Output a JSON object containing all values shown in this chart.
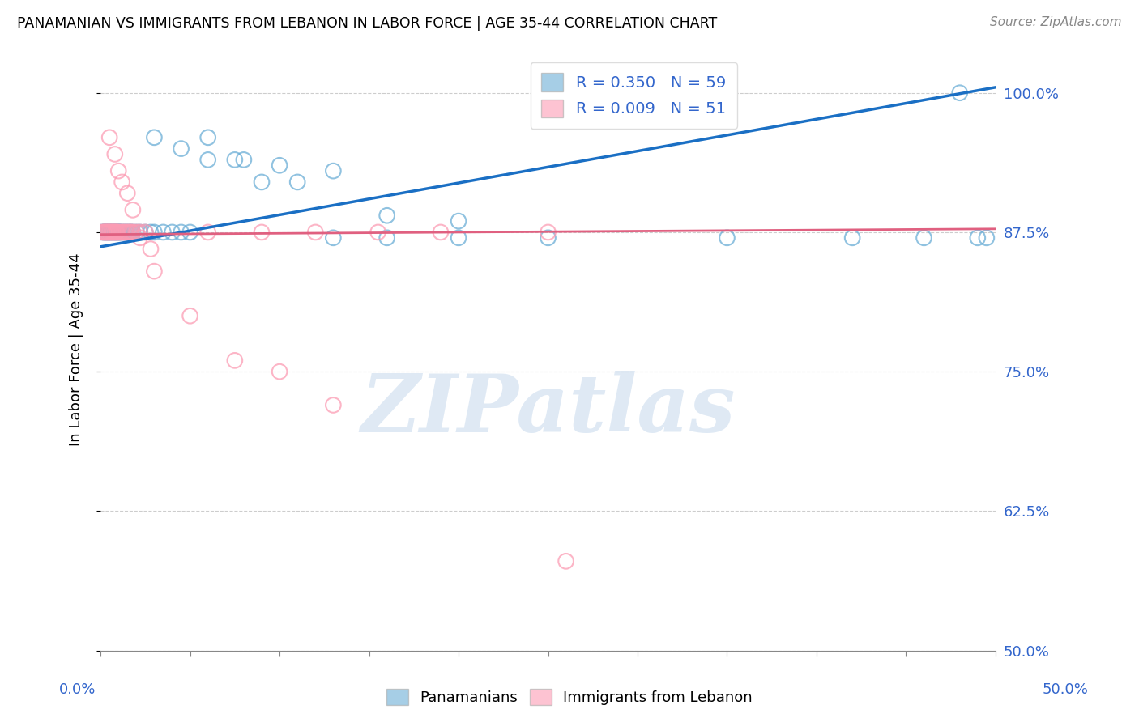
{
  "title": "PANAMANIAN VS IMMIGRANTS FROM LEBANON IN LABOR FORCE | AGE 35-44 CORRELATION CHART",
  "source": "Source: ZipAtlas.com",
  "ylabel": "In Labor Force | Age 35-44",
  "ytick_values": [
    0.5,
    0.625,
    0.75,
    0.875,
    1.0
  ],
  "ytick_labels": [
    "50.0%",
    "62.5%",
    "75.0%",
    "87.5%",
    "100.0%"
  ],
  "xmin": 0.0,
  "xmax": 0.5,
  "ymin": 0.5,
  "ymax": 1.04,
  "blue_color": "#6baed6",
  "pink_color": "#fc9cb4",
  "blue_line_color": "#1a6fc4",
  "pink_line_color": "#e06080",
  "watermark": "ZIPatlas",
  "blue_scatter_x": [
    0.001,
    0.002,
    0.002,
    0.003,
    0.003,
    0.004,
    0.004,
    0.005,
    0.005,
    0.006,
    0.006,
    0.007,
    0.007,
    0.008,
    0.008,
    0.009,
    0.009,
    0.01,
    0.01,
    0.011,
    0.011,
    0.012,
    0.013,
    0.014,
    0.015,
    0.016,
    0.017,
    0.018,
    0.02,
    0.022,
    0.025,
    0.028,
    0.03,
    0.035,
    0.04,
    0.045,
    0.05,
    0.06,
    0.075,
    0.09,
    0.11,
    0.13,
    0.16,
    0.2,
    0.25,
    0.03,
    0.045,
    0.06,
    0.08,
    0.1,
    0.13,
    0.16,
    0.2,
    0.35,
    0.42,
    0.46,
    0.48,
    0.49,
    0.495
  ],
  "blue_scatter_y": [
    0.875,
    0.875,
    0.875,
    0.875,
    0.875,
    0.875,
    0.875,
    0.875,
    0.875,
    0.875,
    0.875,
    0.875,
    0.875,
    0.875,
    0.875,
    0.875,
    0.875,
    0.875,
    0.875,
    0.875,
    0.875,
    0.875,
    0.875,
    0.875,
    0.875,
    0.875,
    0.875,
    0.875,
    0.875,
    0.875,
    0.875,
    0.875,
    0.875,
    0.875,
    0.875,
    0.875,
    0.875,
    0.96,
    0.94,
    0.92,
    0.92,
    0.87,
    0.87,
    0.87,
    0.87,
    0.96,
    0.95,
    0.94,
    0.94,
    0.935,
    0.93,
    0.89,
    0.885,
    0.87,
    0.87,
    0.87,
    1.0,
    0.87,
    0.87
  ],
  "pink_scatter_x": [
    0.001,
    0.002,
    0.002,
    0.003,
    0.003,
    0.004,
    0.004,
    0.005,
    0.005,
    0.006,
    0.006,
    0.007,
    0.007,
    0.008,
    0.008,
    0.009,
    0.009,
    0.01,
    0.011,
    0.012,
    0.013,
    0.014,
    0.015,
    0.016,
    0.017,
    0.018,
    0.02,
    0.022,
    0.025,
    0.005,
    0.008,
    0.01,
    0.012,
    0.015,
    0.018,
    0.022,
    0.028,
    0.06,
    0.09,
    0.12,
    0.155,
    0.19,
    0.03,
    0.05,
    0.075,
    0.1,
    0.13,
    0.25,
    0.26
  ],
  "pink_scatter_y": [
    0.875,
    0.875,
    0.875,
    0.875,
    0.875,
    0.875,
    0.875,
    0.875,
    0.875,
    0.875,
    0.875,
    0.875,
    0.875,
    0.875,
    0.875,
    0.875,
    0.875,
    0.875,
    0.875,
    0.875,
    0.875,
    0.875,
    0.875,
    0.875,
    0.875,
    0.875,
    0.875,
    0.875,
    0.875,
    0.96,
    0.945,
    0.93,
    0.92,
    0.91,
    0.895,
    0.87,
    0.86,
    0.875,
    0.875,
    0.875,
    0.875,
    0.875,
    0.84,
    0.8,
    0.76,
    0.75,
    0.72,
    0.875,
    0.58
  ],
  "blue_line_x0": 0.0,
  "blue_line_x1": 0.5,
  "blue_line_y0": 0.862,
  "blue_line_y1": 1.005,
  "pink_line_x0": 0.0,
  "pink_line_x1": 0.5,
  "pink_line_y0": 0.873,
  "pink_line_y1": 0.878
}
